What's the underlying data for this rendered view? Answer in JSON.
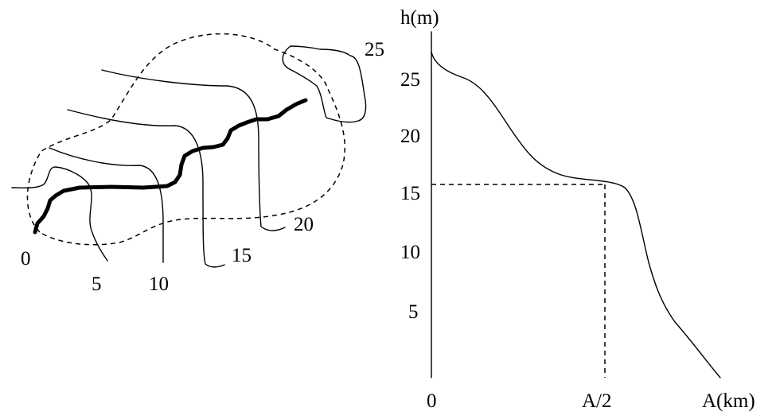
{
  "map": {
    "contour_labels": [
      "0",
      "5",
      "10",
      "15",
      "20",
      "25"
    ]
  },
  "profile": {
    "y_axis_label": "h(m)",
    "x_axis_label": "A(km)",
    "y_ticks": [
      "25",
      "20",
      "15",
      "10",
      "5"
    ],
    "x_ticks": [
      "0",
      "A/2"
    ]
  }
}
